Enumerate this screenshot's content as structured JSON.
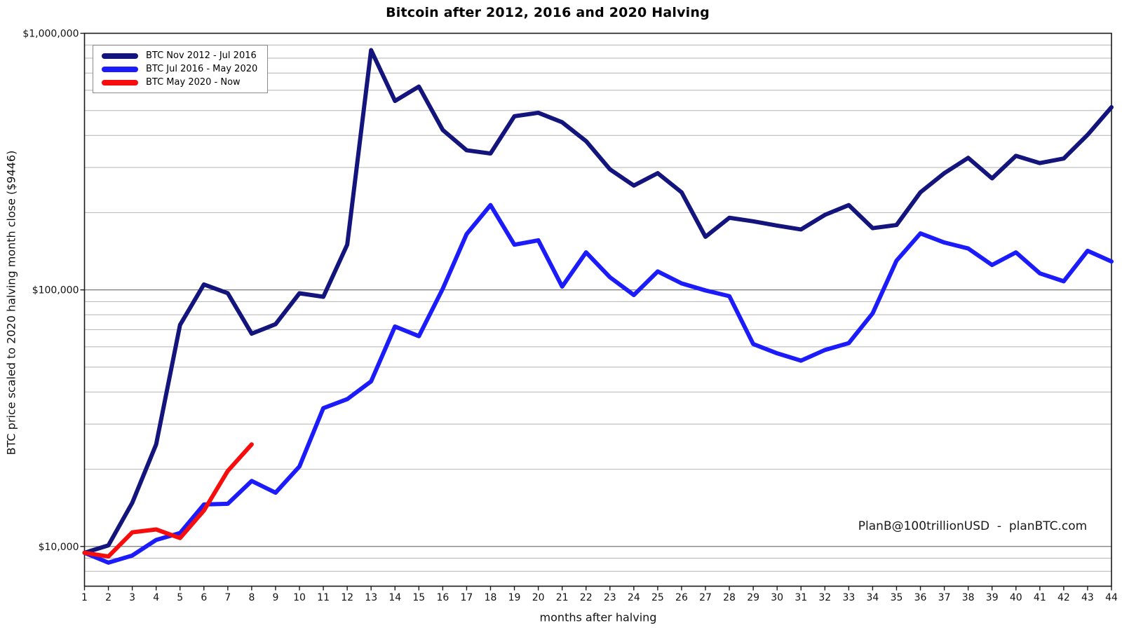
{
  "chart_data": {
    "type": "line",
    "title": "Bitcoin after 2012, 2016 and 2020 Halving",
    "xlabel": "months after halving",
    "ylabel": "BTC price scaled to 2020 halving month close ($9446)",
    "y_scale": "log",
    "xlim": [
      1,
      44
    ],
    "ylim": [
      7000,
      1000000
    ],
    "grid": true,
    "legend_position": "upper-left",
    "x": [
      1,
      2,
      3,
      4,
      5,
      6,
      7,
      8,
      9,
      10,
      11,
      12,
      13,
      14,
      15,
      16,
      17,
      18,
      19,
      20,
      21,
      22,
      23,
      24,
      25,
      26,
      27,
      28,
      29,
      30,
      31,
      32,
      33,
      34,
      35,
      36,
      37,
      38,
      39,
      40,
      41,
      42,
      43,
      44
    ],
    "y_major_ticks": [
      {
        "value": 10000,
        "label": "$10,000"
      },
      {
        "value": 100000,
        "label": "$100,000"
      },
      {
        "value": 1000000,
        "label": "$1,000,000"
      }
    ],
    "y_minor_gridlines": [
      8000,
      9000,
      20000,
      30000,
      40000,
      50000,
      60000,
      70000,
      80000,
      90000,
      200000,
      300000,
      400000,
      500000,
      600000,
      700000,
      800000,
      900000
    ],
    "series": [
      {
        "name": "BTC Nov 2012 - Jul 2016",
        "color": "#14147d",
        "values": [
          9446,
          10100,
          14800,
          25000,
          73000,
          105000,
          97000,
          67500,
          73500,
          97000,
          94000,
          150000,
          860000,
          545000,
          620000,
          420000,
          350000,
          340000,
          475000,
          490000,
          450000,
          380000,
          295000,
          255000,
          285000,
          240000,
          161000,
          191000,
          185000,
          178000,
          172000,
          196000,
          214000,
          174000,
          179000,
          240000,
          285000,
          327000,
          272000,
          333000,
          312000,
          325000,
          402000,
          515000
        ]
      },
      {
        "name": "BTC Jul 2016 - May 2020",
        "color": "#1c1cfa",
        "values": [
          9446,
          8650,
          9220,
          10600,
          11280,
          14570,
          14670,
          18000,
          16200,
          20500,
          34600,
          37500,
          44000,
          72000,
          66000,
          101000,
          165000,
          214000,
          150000,
          156000,
          103000,
          140000,
          112000,
          95500,
          118000,
          106000,
          99500,
          94500,
          61500,
          56600,
          53000,
          58300,
          62000,
          81000,
          130000,
          166000,
          153000,
          145000,
          125000,
          140000,
          116000,
          108000,
          142000,
          129000
        ]
      },
      {
        "name": "BTC May 2020 - Now",
        "color": "#f60d0d",
        "values": [
          9446,
          9140,
          11350,
          11650,
          10780,
          13800,
          19700,
          25000
        ]
      }
    ]
  },
  "watermark": "PlanB@100trillionUSD  -  planBTC.com",
  "colors": {
    "background": "#ffffff",
    "plot_border": "#1a1a1a",
    "grid_minor": "#b4b4b4",
    "grid_major": "#7a7a7a",
    "tick_text": "#111111"
  }
}
